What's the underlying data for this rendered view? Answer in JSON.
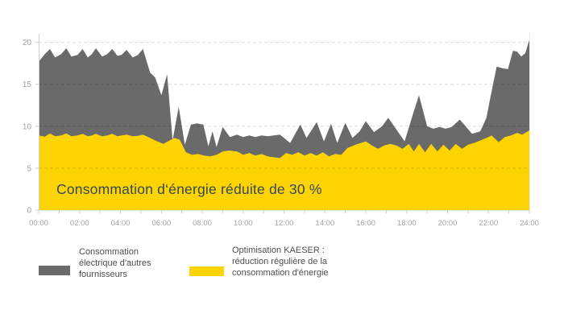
{
  "chart_data": {
    "type": "area",
    "overlay_text": "Consommation d‘énergie réduite de 30 %",
    "xlabel": "",
    "ylabel": "",
    "x_unit": "time (hh:mm)",
    "x_range_hours": [
      0,
      24
    ],
    "ylim": [
      0,
      21
    ],
    "grid": "dashed horizontal gridlines on top of areas",
    "legend_position": "bottom-left",
    "x_tick_labels": [
      "00:00",
      "02:00",
      "04:00",
      "06:00",
      "08:00",
      "10:00",
      "12:00",
      "14:00",
      "16:00",
      "18:00",
      "20:00",
      "22:00",
      "24:00"
    ],
    "y_ticks": [
      0,
      5,
      10,
      15,
      20
    ],
    "y_gridlines": [
      5,
      10,
      15,
      20
    ],
    "colors": {
      "gray_series": "#6a6a6a",
      "yellow_series": "#fdd402",
      "axis_labels": "#a0a0a0",
      "legend_text": "#4d4d4d",
      "overlay_text": "#33485c",
      "gridline": "rgba(0,0,0,0.14)"
    },
    "series": [
      {
        "name": "Consommation électrique d'autres fournisseurs",
        "color": "#6a6a6a",
        "points": [
          [
            0,
            17.7
          ],
          [
            0.3,
            18.6
          ],
          [
            0.55,
            19.2
          ],
          [
            0.8,
            18.2
          ],
          [
            1.1,
            18.6
          ],
          [
            1.35,
            19.3
          ],
          [
            1.6,
            18.3
          ],
          [
            1.9,
            18.5
          ],
          [
            2.15,
            19.2
          ],
          [
            2.4,
            18.2
          ],
          [
            2.6,
            18.6
          ],
          [
            2.8,
            19.3
          ],
          [
            3.1,
            18.3
          ],
          [
            3.35,
            18.6
          ],
          [
            3.6,
            19.2
          ],
          [
            3.85,
            18.4
          ],
          [
            4.05,
            18.5
          ],
          [
            4.3,
            19.1
          ],
          [
            4.6,
            18.2
          ],
          [
            4.85,
            18.5
          ],
          [
            5.1,
            19.2
          ],
          [
            5.45,
            16.4
          ],
          [
            5.7,
            15.8
          ],
          [
            6.0,
            13.7
          ],
          [
            6.28,
            16.2
          ],
          [
            6.55,
            8.3
          ],
          [
            6.85,
            12.3
          ],
          [
            7.15,
            7.8
          ],
          [
            7.45,
            10.2
          ],
          [
            7.75,
            10.35
          ],
          [
            8.05,
            10.2
          ],
          [
            8.3,
            7.6
          ],
          [
            8.5,
            9.4
          ],
          [
            8.7,
            7.5
          ],
          [
            9.0,
            9.9
          ],
          [
            9.35,
            8.7
          ],
          [
            9.7,
            9.0
          ],
          [
            10.0,
            8.7
          ],
          [
            10.3,
            8.9
          ],
          [
            10.6,
            8.7
          ],
          [
            10.9,
            8.9
          ],
          [
            11.2,
            8.8
          ],
          [
            11.5,
            8.9
          ],
          [
            11.8,
            9.0
          ],
          [
            12.05,
            8.5
          ],
          [
            12.3,
            8.0
          ],
          [
            12.8,
            10.2
          ],
          [
            13.1,
            8.6
          ],
          [
            13.6,
            10.5
          ],
          [
            13.95,
            8.2
          ],
          [
            14.3,
            10.3
          ],
          [
            14.6,
            8.0
          ],
          [
            15.0,
            10.4
          ],
          [
            15.35,
            8.6
          ],
          [
            15.7,
            9.4
          ],
          [
            16.0,
            10.6
          ],
          [
            16.4,
            9.3
          ],
          [
            16.8,
            10.0
          ],
          [
            17.1,
            11.0
          ],
          [
            17.5,
            9.6
          ],
          [
            17.9,
            8.2
          ],
          [
            18.25,
            11.0
          ],
          [
            18.6,
            13.7
          ],
          [
            19.0,
            10.0
          ],
          [
            19.3,
            9.7
          ],
          [
            19.6,
            9.9
          ],
          [
            19.9,
            9.7
          ],
          [
            20.2,
            9.9
          ],
          [
            20.6,
            10.8
          ],
          [
            21.2,
            9.1
          ],
          [
            21.6,
            9.4
          ],
          [
            21.9,
            11.0
          ],
          [
            22.1,
            13.5
          ],
          [
            22.4,
            17.1
          ],
          [
            22.7,
            16.9
          ],
          [
            22.95,
            16.8
          ],
          [
            23.2,
            19.0
          ],
          [
            23.4,
            18.9
          ],
          [
            23.6,
            18.3
          ],
          [
            23.8,
            18.7
          ],
          [
            24,
            20.3
          ]
        ]
      },
      {
        "name": "Optimisation KAESER : réduction régulière de la consommation d'énergie",
        "color": "#fdd402",
        "points": [
          [
            0,
            8.9
          ],
          [
            0.3,
            8.75
          ],
          [
            0.55,
            9.15
          ],
          [
            0.8,
            8.8
          ],
          [
            1.1,
            8.9
          ],
          [
            1.35,
            9.15
          ],
          [
            1.6,
            8.8
          ],
          [
            1.9,
            8.9
          ],
          [
            2.15,
            9.1
          ],
          [
            2.4,
            8.8
          ],
          [
            2.6,
            8.9
          ],
          [
            2.8,
            9.1
          ],
          [
            3.1,
            8.8
          ],
          [
            3.35,
            8.9
          ],
          [
            3.6,
            9.1
          ],
          [
            3.85,
            8.8
          ],
          [
            4.05,
            8.9
          ],
          [
            4.3,
            9.0
          ],
          [
            4.6,
            8.8
          ],
          [
            4.85,
            8.85
          ],
          [
            5.1,
            9.0
          ],
          [
            5.45,
            8.6
          ],
          [
            5.8,
            8.2
          ],
          [
            6.1,
            7.9
          ],
          [
            6.4,
            8.3
          ],
          [
            6.65,
            8.6
          ],
          [
            6.9,
            8.4
          ],
          [
            7.2,
            6.9
          ],
          [
            7.5,
            6.6
          ],
          [
            7.8,
            6.7
          ],
          [
            8.1,
            6.5
          ],
          [
            8.4,
            6.4
          ],
          [
            8.7,
            6.6
          ],
          [
            9.0,
            7.0
          ],
          [
            9.3,
            7.1
          ],
          [
            9.7,
            7.0
          ],
          [
            10.0,
            6.6
          ],
          [
            10.3,
            6.8
          ],
          [
            10.6,
            6.5
          ],
          [
            10.9,
            6.7
          ],
          [
            11.2,
            6.4
          ],
          [
            11.5,
            6.3
          ],
          [
            11.8,
            6.2
          ],
          [
            12.1,
            6.8
          ],
          [
            12.4,
            6.6
          ],
          [
            12.7,
            6.9
          ],
          [
            13.0,
            6.5
          ],
          [
            13.3,
            6.8
          ],
          [
            13.6,
            6.5
          ],
          [
            13.9,
            6.9
          ],
          [
            14.2,
            6.4
          ],
          [
            14.5,
            6.7
          ],
          [
            14.8,
            6.6
          ],
          [
            15.1,
            7.4
          ],
          [
            15.5,
            7.8
          ],
          [
            16.0,
            8.2
          ],
          [
            16.3,
            7.7
          ],
          [
            16.6,
            7.3
          ],
          [
            16.9,
            7.7
          ],
          [
            17.2,
            7.9
          ],
          [
            17.5,
            7.7
          ],
          [
            17.8,
            7.3
          ],
          [
            18.1,
            7.9
          ],
          [
            18.35,
            7.0
          ],
          [
            18.6,
            7.9
          ],
          [
            18.9,
            6.9
          ],
          [
            19.2,
            7.9
          ],
          [
            19.5,
            7.0
          ],
          [
            19.8,
            7.8
          ],
          [
            20.1,
            7.1
          ],
          [
            20.4,
            7.9
          ],
          [
            20.7,
            7.3
          ],
          [
            21.0,
            7.8
          ],
          [
            21.3,
            8.0
          ],
          [
            21.6,
            8.3
          ],
          [
            21.9,
            8.6
          ],
          [
            22.15,
            8.9
          ],
          [
            22.5,
            8.1
          ],
          [
            22.8,
            8.7
          ],
          [
            23.1,
            8.9
          ],
          [
            23.4,
            9.2
          ],
          [
            23.65,
            9.0
          ],
          [
            24,
            9.5
          ]
        ]
      }
    ]
  },
  "legend": {
    "items": [
      {
        "name": "Consommation électrique d'autres fournisseurs",
        "color": "#6a6a6a",
        "lines": [
          "Consommation",
          "électrique d'autres",
          "fournisseurs"
        ]
      },
      {
        "name": "Optimisation KAESER : réduction régulière de la consommation d'énergie",
        "color": "#fdd402",
        "lines": [
          "Optimisation KAESER :",
          "réduction régulière de la",
          "consommation d'énergie"
        ]
      }
    ]
  }
}
